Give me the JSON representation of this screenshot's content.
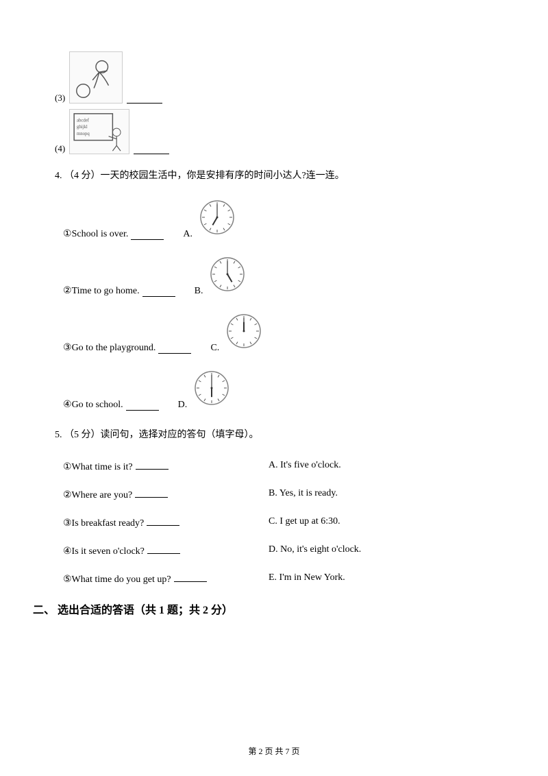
{
  "items": {
    "i3_num": "(3)",
    "i4_num": "(4)"
  },
  "q4": {
    "text": "4. （4 分）一天的校园生活中，你是安排有序的时间小达人?连一连。",
    "opts": [
      {
        "num": "①",
        "sentence": "School is over.",
        "label": "A."
      },
      {
        "num": "②",
        "sentence": "Time to go home.",
        "label": "B."
      },
      {
        "num": "③",
        "sentence": "Go to the playground.",
        "label": "C."
      },
      {
        "num": "④",
        "sentence": "Go to school.",
        "label": "D."
      }
    ],
    "clock_hours": [
      7,
      5,
      12,
      6
    ],
    "clock_border": "#808080",
    "clock_bg": "#ffffff",
    "clock_size": 56
  },
  "q5": {
    "text": "5. （5 分）读问句，选择对应的答句（填字母）。",
    "pairs": [
      {
        "q": "①What time is it?",
        "a": "A. It's five o'clock."
      },
      {
        "q": "②Where are you?",
        "a": "B. Yes, it is ready."
      },
      {
        "q": "③Is breakfast ready?",
        "a": "C. I get up at 6:30."
      },
      {
        "q": "④Is it seven o'clock?",
        "a": "D. No, it's eight o'clock."
      },
      {
        "q": "⑤What time do you get up?",
        "a": "E. I'm in New York."
      }
    ]
  },
  "section2": "二、 选出合适的答语（共 1 题；共 2 分）",
  "footer": "第 2 页 共 7 页"
}
